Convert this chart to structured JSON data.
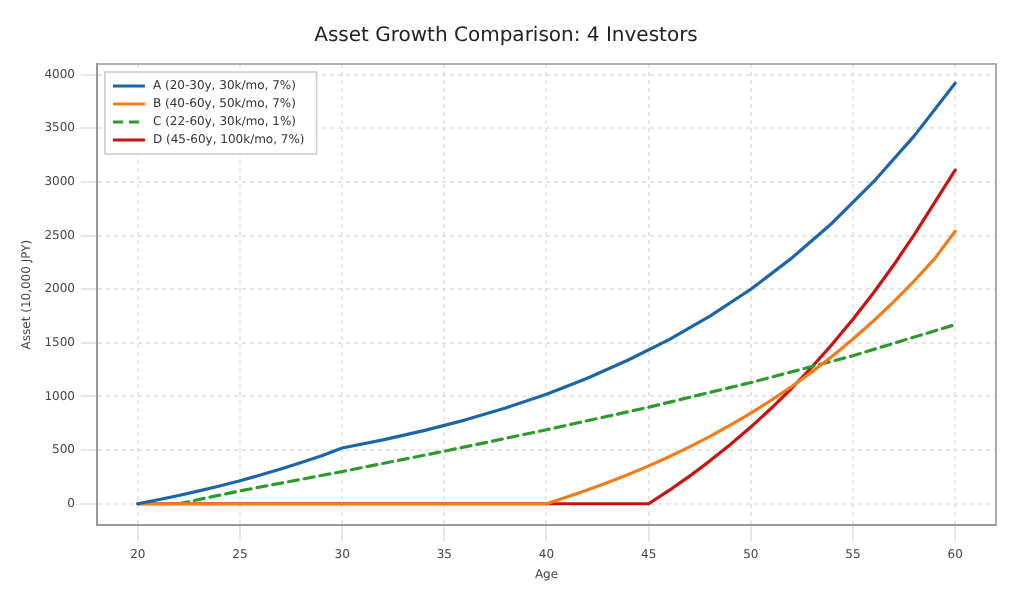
{
  "chart_data": {
    "type": "line",
    "title": "Asset Growth Comparison: 4 Investors",
    "xlabel": "Age",
    "ylabel": "Asset (10,000 JPY)",
    "xlim": [
      18,
      62
    ],
    "xticks": [
      20,
      25,
      30,
      35,
      40,
      45,
      50,
      55,
      60
    ],
    "ylim": [
      -200,
      4100
    ],
    "yticks": [
      0,
      500,
      1000,
      1500,
      2000,
      2500,
      3000,
      3500,
      4000
    ],
    "grid": true,
    "legend": "top left",
    "marker": "none",
    "series": [
      {
        "name": "A (20-30y, 30k/mo, 7%)",
        "color": "#1a66a8",
        "line_style": "solid",
        "x": [
          20,
          21,
          22,
          23,
          24,
          25,
          26,
          27,
          28,
          29,
          30,
          32,
          34,
          36,
          38,
          40,
          42,
          44,
          46,
          48,
          50,
          52,
          54,
          56,
          58,
          60
        ],
        "values": [
          0,
          37,
          77,
          120,
          166,
          215,
          268,
          324,
          384,
          448,
          520,
          595,
          682,
          780,
          893,
          1020,
          1170,
          1340,
          1530,
          1750,
          2000,
          2290,
          2620,
          3000,
          3430,
          3920
        ]
      },
      {
        "name": "B (40-60y, 50k/mo, 7%)",
        "color": "#f07d1a",
        "line_style": "solid",
        "x": [
          20,
          40,
          41,
          42,
          43,
          44,
          45,
          46,
          47,
          48,
          49,
          50,
          51,
          52,
          53,
          54,
          55,
          56,
          57,
          58,
          59,
          60
        ],
        "values": [
          0,
          0,
          62,
          128,
          198,
          273,
          353,
          438,
          530,
          628,
          733,
          845,
          965,
          1093,
          1231,
          1378,
          1536,
          1704,
          1885,
          2079,
          2286,
          2540
        ]
      },
      {
        "name": "C (22-60y, 30k/mo, 1%)",
        "color": "#2e9a2e",
        "line_style": "dashed",
        "x": [
          22,
          25,
          30,
          35,
          40,
          45,
          50,
          55,
          60
        ],
        "values": [
          0,
          120,
          300,
          490,
          690,
          900,
          1130,
          1380,
          1670
        ]
      },
      {
        "name": "D (45-60y, 100k/mo, 7%)",
        "color": "#cc1111",
        "line_style": "solid",
        "x": [
          20,
          45,
          46,
          47,
          48,
          49,
          50,
          51,
          52,
          53,
          54,
          55,
          56,
          57,
          58,
          59,
          60
        ],
        "values": [
          0,
          0,
          124,
          257,
          400,
          552,
          715,
          890,
          1077,
          1277,
          1491,
          1720,
          1965,
          2228,
          2509,
          2810,
          3110
        ]
      }
    ]
  }
}
